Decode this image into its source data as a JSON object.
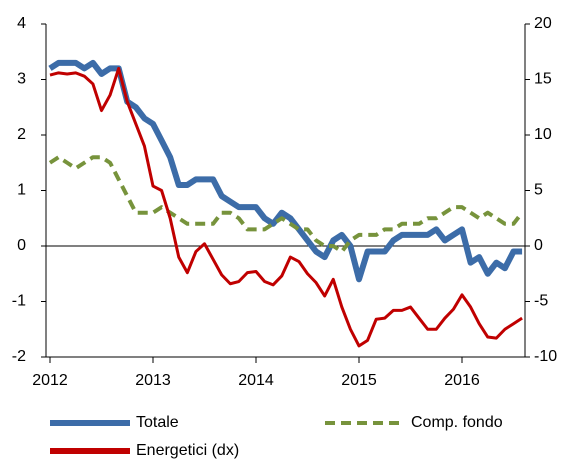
{
  "chart_data": {
    "type": "line",
    "categories": [
      "2012",
      null,
      null,
      null,
      null,
      null,
      null,
      null,
      null,
      null,
      null,
      null,
      "2013",
      null,
      null,
      null,
      null,
      null,
      null,
      null,
      null,
      null,
      null,
      null,
      "2014",
      null,
      null,
      null,
      null,
      null,
      null,
      null,
      null,
      null,
      null,
      null,
      "2015",
      null,
      null,
      null,
      null,
      null,
      null,
      null,
      null,
      null,
      null,
      null,
      "2016",
      null,
      null,
      null,
      null,
      null,
      null,
      null
    ],
    "series": [
      {
        "name": "Totale",
        "color": "#3c6ca8",
        "dash": false,
        "values": [
          3.2,
          3.3,
          3.3,
          3.3,
          3.2,
          3.3,
          3.1,
          3.2,
          3.2,
          2.6,
          2.5,
          2.3,
          2.2,
          1.9,
          1.6,
          1.1,
          1.1,
          1.2,
          1.2,
          1.2,
          0.9,
          0.8,
          0.7,
          0.7,
          0.7,
          0.5,
          0.4,
          0.6,
          0.5,
          0.3,
          0.1,
          -0.1,
          -0.2,
          0.1,
          0.2,
          0.0,
          -0.6,
          -0.1,
          -0.1,
          -0.1,
          0.1,
          0.2,
          0.2,
          0.2,
          0.2,
          0.3,
          0.1,
          0.2,
          0.3,
          -0.3,
          -0.2,
          -0.5,
          -0.3,
          -0.4,
          -0.1,
          -0.1
        ]
      },
      {
        "name": "Comp. fondo",
        "color": "#77933c",
        "dash": true,
        "values": [
          1.5,
          1.6,
          1.5,
          1.4,
          1.5,
          1.6,
          1.6,
          1.5,
          1.2,
          0.9,
          0.6,
          0.6,
          0.6,
          0.7,
          0.6,
          0.5,
          0.4,
          0.4,
          0.4,
          0.4,
          0.6,
          0.6,
          0.5,
          0.3,
          0.3,
          0.3,
          0.4,
          0.5,
          0.4,
          0.3,
          0.3,
          0.1,
          0.0,
          0.0,
          -0.1,
          0.1,
          0.2,
          0.2,
          0.2,
          0.3,
          0.3,
          0.4,
          0.4,
          0.4,
          0.5,
          0.5,
          0.6,
          0.7,
          0.7,
          0.6,
          0.5,
          0.6,
          0.5,
          0.4,
          0.4,
          0.6
        ]
      },
      {
        "name": "Energetici (dx)",
        "color": "#c00000",
        "dash": false,
        "axis": "y2",
        "values": [
          15.4,
          15.6,
          15.5,
          15.6,
          15.3,
          14.6,
          12.2,
          13.6,
          16.0,
          13.0,
          11.0,
          9.0,
          5.4,
          5.0,
          2.5,
          -1.0,
          -2.4,
          -0.5,
          0.2,
          -1.2,
          -2.6,
          -3.4,
          -3.2,
          -2.4,
          -2.3,
          -3.2,
          -3.5,
          -2.7,
          -1.0,
          -1.4,
          -2.5,
          -3.3,
          -4.5,
          -3.0,
          -5.5,
          -7.5,
          -9.0,
          -8.5,
          -6.6,
          -6.5,
          -5.8,
          -5.8,
          -5.5,
          -6.5,
          -7.5,
          -7.5,
          -6.5,
          -5.7,
          -4.4,
          -5.5,
          -7.0,
          -8.2,
          -8.3,
          -7.5,
          -7.0,
          -6.5
        ]
      }
    ],
    "ylim": [
      -2,
      4
    ],
    "yticks": [
      -2,
      -1,
      0,
      1,
      2,
      3,
      4
    ],
    "y2lim": [
      -10,
      20
    ],
    "y2ticks": [
      -10,
      -5,
      0,
      5,
      10,
      15,
      20
    ],
    "legend": "bottom"
  }
}
